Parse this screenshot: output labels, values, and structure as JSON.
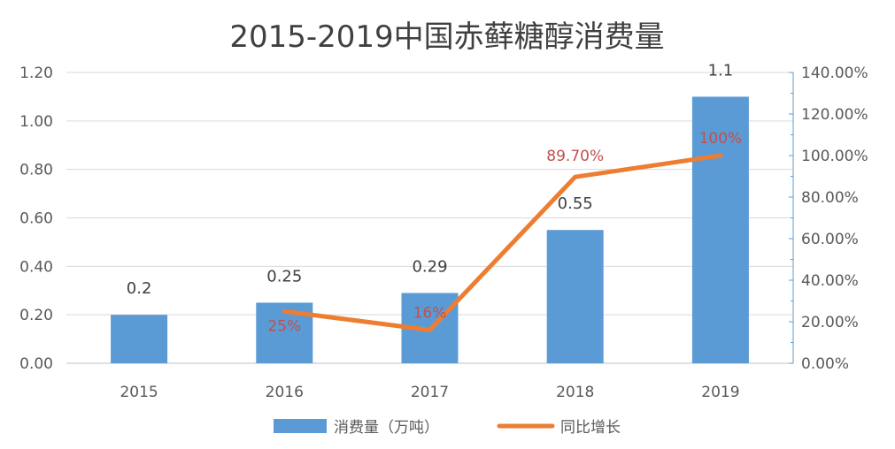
{
  "chart_data": {
    "type": "bar",
    "title": "2015-2019中国赤藓糖醇消费量",
    "categories": [
      "2015",
      "2016",
      "2017",
      "2018",
      "2019"
    ],
    "series": [
      {
        "name": "消费量（万吨）",
        "type": "bar",
        "axis": "left",
        "values": [
          0.2,
          0.25,
          0.29,
          0.55,
          1.1
        ],
        "labels": [
          "0.2",
          "0.25",
          "0.29",
          "0.55",
          "1.1"
        ],
        "color": "#5b9bd5"
      },
      {
        "name": "同比增长",
        "type": "line",
        "axis": "right",
        "x": [
          "2016",
          "2017",
          "2018",
          "2019"
        ],
        "values": [
          25,
          16,
          89.7,
          100
        ],
        "labels": [
          "25%",
          "16%",
          "89.70%",
          "100%"
        ],
        "color": "#ed7d31"
      }
    ],
    "y_left": {
      "ylim": [
        0,
        1.2
      ],
      "ticks": [
        "0.00",
        "0.20",
        "0.40",
        "0.60",
        "0.80",
        "1.00",
        "1.20"
      ]
    },
    "y_right": {
      "ylim": [
        0,
        140
      ],
      "ticks": [
        "0.00%",
        "20.00%",
        "40.00%",
        "60.00%",
        "80.00%",
        "100.00%",
        "120.00%",
        "140.00%"
      ]
    },
    "grid": true,
    "legend_position": "bottom",
    "label_colors": {
      "line_label": "#c0504d"
    }
  }
}
